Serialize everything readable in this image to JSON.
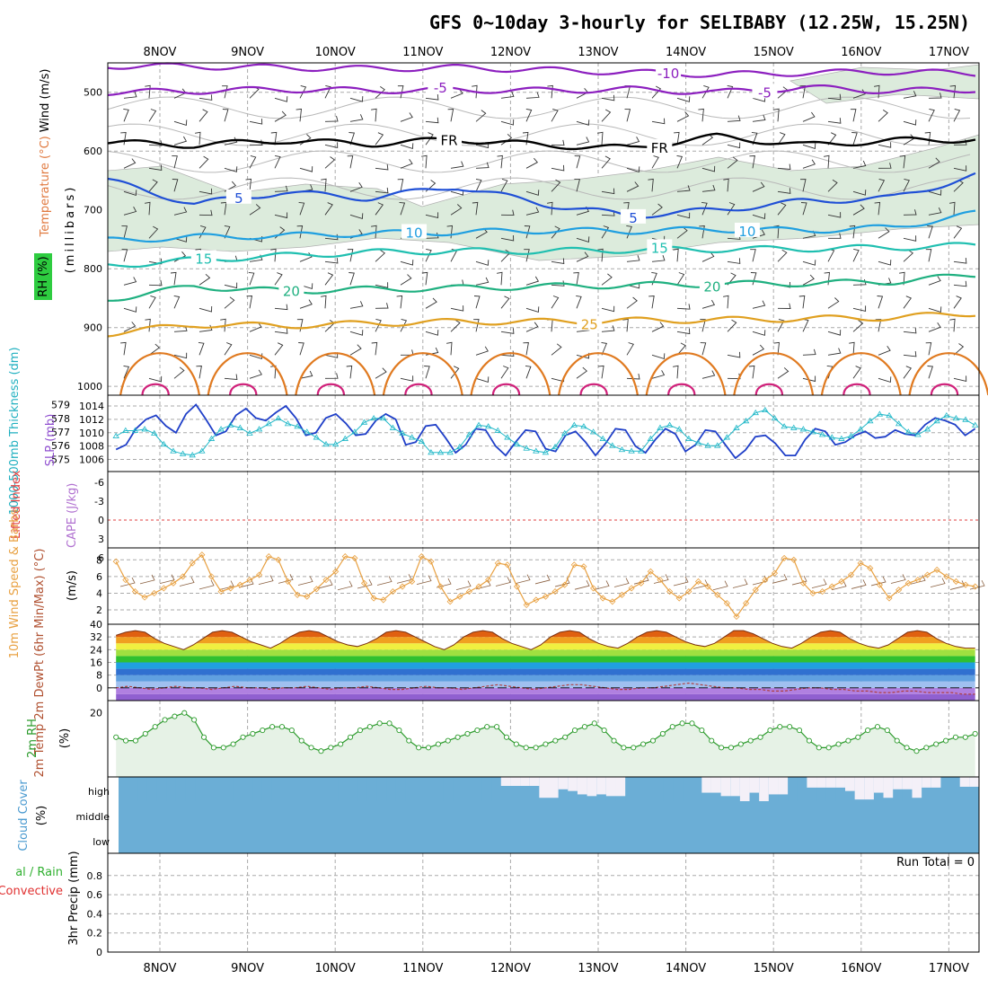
{
  "title": "GFS 0~10day 3-hourly for SELIBABY (12.25W, 15.25N)",
  "dates": [
    "8NOV",
    "9NOV",
    "10NOV",
    "11NOV",
    "12NOV",
    "13NOV",
    "14NOV",
    "15NOV",
    "16NOV",
    "17NOV"
  ],
  "run_total_text": "Run Total = 0",
  "colors": {
    "purple": "#8c1fbf",
    "black": "#000000",
    "blue": "#1f4fd6",
    "lightblue": "#1f9fe0",
    "teal": "#1fbfb0",
    "green": "#1fb080",
    "gold": "#e0a020",
    "orange": "#e07a20",
    "magenta": "#d0207a",
    "rhfill": "#dcebdc",
    "cloud": "#6baed6",
    "cloudhigh": "#f4f0f8",
    "slp": "#1f3fc8",
    "thick": "#20b8c8",
    "wind": "#e8a040",
    "rh2m": "#2a9a2a",
    "dew": "#b04040"
  },
  "chart_data": [
    {
      "panel": "upper-air",
      "type": "contour",
      "ylabel_parts": [
        {
          "text": "Wind (m/s)",
          "color": "#000000"
        },
        {
          "text": "Temperature (°C)",
          "color": "#e04040"
        },
        {
          "text": "RH (%)",
          "color": "#000000"
        }
      ],
      "y_unit": "(millibars)",
      "yticks": [
        500,
        600,
        700,
        800,
        900,
        1000
      ],
      "ylim": [
        450,
        1015
      ],
      "contours": [
        {
          "label": "-10",
          "color": "#8c1fbf",
          "labels_at": [
            13.8
          ],
          "p": [
            455,
            456,
            458,
            460,
            458,
            462,
            466,
            470,
            467,
            465,
            468
          ]
        },
        {
          "label": "-5",
          "color": "#8c1fbf",
          "labels_at": [
            11.2,
            14.9
          ],
          "p": [
            500,
            498,
            495,
            497,
            496,
            497,
            495,
            500,
            492,
            498,
            495
          ]
        },
        {
          "label": "FR",
          "color": "#000000",
          "labels_at": [
            11.3,
            13.7
          ],
          "p": [
            585,
            590,
            582,
            588,
            580,
            590,
            595,
            575,
            590,
            582,
            580
          ]
        },
        {
          "label": "5",
          "color": "#1f4fd6",
          "labels_at": [
            8.9,
            13.4
          ],
          "p": [
            650,
            690,
            670,
            680,
            660,
            690,
            710,
            700,
            685,
            680,
            640
          ]
        },
        {
          "label": "10",
          "color": "#1f9fe0",
          "labels_at": [
            10.9,
            14.7
          ],
          "p": [
            752,
            746,
            744,
            740,
            738,
            735,
            736,
            733,
            735,
            730,
            705
          ]
        },
        {
          "label": "15",
          "color": "#1fbfb0",
          "labels_at": [
            8.5,
            13.7
          ],
          "p": [
            795,
            785,
            778,
            772,
            770,
            770,
            768,
            767,
            766,
            764,
            760
          ]
        },
        {
          "label": "20",
          "color": "#1fb080",
          "labels_at": [
            9.5,
            14.3
          ],
          "p": [
            852,
            830,
            838,
            835,
            833,
            830,
            828,
            826,
            825,
            822,
            810
          ]
        },
        {
          "label": "25",
          "color": "#e0a020",
          "labels_at": [
            12.9
          ],
          "p": [
            910,
            895,
            897,
            893,
            890,
            890,
            888,
            887,
            885,
            883,
            875
          ]
        }
      ],
      "daily_loops": {
        "color": "#e07a20",
        "top": 935,
        "note": "diurnal 30°C near-surface contours"
      },
      "daily_hot": {
        "color": "#d0207a",
        "top": 990,
        "note": "diurnal 35°C near-surface contours"
      }
    },
    {
      "panel": "slp-thickness",
      "type": "line",
      "ylabel_left": "1000-500mb Thickness (dm)",
      "ylabel_right": "SLP (mb)",
      "yticks_left": [
        575,
        576,
        577,
        578,
        579
      ],
      "yticks_right": [
        1006,
        1008,
        1010,
        1012,
        1014
      ],
      "series": [
        {
          "name": "SLP",
          "axis": "right",
          "color": "#1f3fc8",
          "marker": "none",
          "values": [
            1007.5,
            1008.2,
            1010.6,
            1012.0,
            1012.6,
            1011.0,
            1010.0,
            1012.8,
            1014.2,
            1012.0,
            1009.6,
            1010.2,
            1012.6,
            1013.6,
            1012.2,
            1011.8,
            1013.0,
            1014.0,
            1012.2,
            1009.6,
            1010.0,
            1012.2,
            1012.8,
            1011.4,
            1009.6,
            1009.8,
            1011.8,
            1012.8,
            1012.0,
            1008.2,
            1008.6,
            1011.0,
            1011.2,
            1009.2,
            1007.0,
            1008.2,
            1010.6,
            1010.4,
            1008.0,
            1006.6,
            1008.6,
            1010.4,
            1010.2,
            1007.6,
            1007.2,
            1009.6,
            1010.2,
            1008.6,
            1006.6,
            1008.4,
            1010.6,
            1010.4,
            1008.0,
            1007.0,
            1009.0,
            1010.6,
            1009.8,
            1007.2,
            1008.2,
            1010.4,
            1010.2,
            1008.2,
            1006.2,
            1007.4,
            1009.4,
            1009.6,
            1008.4,
            1006.6,
            1006.6,
            1009.0,
            1010.6,
            1010.2,
            1008.2,
            1008.6,
            1009.6,
            1010.2,
            1009.2,
            1009.4,
            1010.4,
            1009.8,
            1009.6,
            1011.2,
            1012.2,
            1011.8,
            1011.2,
            1009.6,
            1010.6
          ]
        },
        {
          "name": "Thickness",
          "axis": "left",
          "color": "#20b8c8",
          "marker": "triangle",
          "values": [
            576.7,
            577.1,
            577.1,
            577.2,
            576.9,
            576.1,
            575.6,
            575.4,
            575.3,
            575.6,
            576.5,
            577.2,
            577.5,
            577.3,
            576.9,
            577.2,
            577.6,
            578.0,
            577.6,
            577.4,
            577.0,
            576.6,
            576.1,
            576.1,
            576.5,
            577.0,
            577.7,
            578.0,
            578.0,
            577.3,
            576.9,
            576.6,
            576.3,
            575.5,
            575.5,
            575.5,
            575.9,
            576.8,
            577.5,
            577.4,
            577.1,
            576.6,
            576.1,
            575.8,
            575.6,
            575.5,
            575.9,
            576.9,
            577.5,
            577.4,
            577.0,
            576.5,
            576.0,
            575.7,
            575.6,
            575.6,
            576.5,
            577.3,
            577.5,
            577.2,
            576.5,
            576.2,
            576.0,
            576.0,
            576.6,
            577.3,
            577.8,
            578.4,
            578.6,
            578.0,
            577.4,
            577.3,
            577.2,
            577.0,
            576.8,
            576.6,
            576.5,
            576.7,
            577.2,
            577.8,
            578.3,
            578.2,
            577.6,
            577.0,
            576.8,
            577.2,
            577.8,
            578.2,
            578.0,
            577.9,
            577.5
          ]
        }
      ]
    },
    {
      "panel": "cape-lifted-index",
      "type": "line",
      "ylabel_left": "Lifted Index",
      "ylabel_right": "CAPE (J/kg)",
      "yticks": [
        "-6",
        "-3",
        "0",
        "3",
        "6"
      ],
      "series": [
        {
          "name": "Lifted Index",
          "color": "#e04040",
          "values": [
            0
          ]
        }
      ]
    },
    {
      "panel": "10m-wind",
      "type": "line",
      "ylabel": "10m Wind Speed & Barbs",
      "yunit": "(m/s)",
      "yticks": [
        2,
        4,
        6,
        8
      ],
      "series": [
        {
          "name": "Speed",
          "color": "#e8a040",
          "marker": "diamond",
          "values": [
            7.8,
            5.6,
            4.2,
            3.5,
            4.0,
            4.6,
            5.2,
            6.0,
            7.6,
            8.6,
            6.0,
            4.2,
            4.6,
            5.0,
            5.6,
            6.2,
            8.4,
            8.0,
            5.4,
            3.8,
            3.6,
            4.5,
            5.6,
            6.6,
            8.4,
            8.2,
            5.2,
            3.4,
            3.2,
            4.2,
            4.8,
            5.4,
            8.4,
            7.8,
            4.8,
            3.0,
            3.6,
            4.2,
            4.8,
            5.6,
            7.6,
            7.4,
            4.8,
            2.6,
            3.2,
            3.6,
            4.2,
            5.0,
            7.4,
            7.2,
            4.6,
            3.4,
            3.0,
            3.8,
            4.6,
            5.2,
            6.6,
            5.6,
            4.2,
            3.4,
            4.2,
            5.4,
            4.8,
            3.8,
            2.8,
            1.2,
            2.8,
            4.4,
            5.6,
            6.4,
            8.2,
            8.0,
            5.2,
            4.0,
            4.2,
            4.8,
            5.4,
            6.2,
            7.6,
            7.0,
            5.0,
            3.4,
            4.4,
            5.2,
            5.6,
            6.2,
            6.8,
            6.0,
            5.4,
            5.0,
            4.8
          ]
        }
      ]
    },
    {
      "panel": "2m-temp",
      "type": "area",
      "ylabel": "2m Temp 2m DewPt (6hr Min/Max) (°C)",
      "yticks": [
        0,
        8,
        16,
        24,
        32,
        40
      ],
      "ylim": [
        -8,
        40
      ],
      "series": [
        {
          "name": "Temp",
          "values": [
            33,
            35,
            36,
            35,
            31,
            28,
            26,
            24,
            27,
            31,
            35,
            36,
            35,
            32,
            29,
            27,
            25,
            28,
            32,
            35,
            36,
            35,
            32,
            29,
            27,
            26,
            28,
            31,
            35,
            36,
            35,
            32,
            29,
            26,
            24,
            27,
            32,
            35,
            36,
            35,
            31,
            28,
            26,
            24,
            27,
            32,
            35,
            36,
            35,
            31,
            28,
            26,
            25,
            28,
            32,
            35,
            36,
            35,
            32,
            29,
            27,
            26,
            28,
            32,
            36,
            36,
            34,
            31,
            28,
            26,
            25,
            28,
            32,
            35,
            36,
            35,
            31,
            28,
            26,
            25,
            27,
            31,
            35,
            36,
            35,
            31,
            28,
            26,
            25,
            25
          ]
        },
        {
          "name": "DewPt",
          "values": [
            0,
            1,
            0,
            -1,
            0,
            1,
            0,
            0,
            -1,
            0,
            1,
            0,
            0,
            -1,
            0,
            0,
            1,
            0,
            -1,
            0,
            0,
            1,
            0,
            -1,
            -1,
            0,
            1,
            0,
            0,
            -1,
            0,
            1,
            2,
            1,
            0,
            -1,
            0,
            1,
            2,
            2,
            1,
            0,
            -1,
            -1,
            0,
            0,
            1,
            2,
            3,
            2,
            1,
            0,
            0,
            -1,
            -1,
            -2,
            -2,
            -1,
            0,
            0,
            -1,
            -1,
            -2,
            -2,
            -3,
            -3,
            -2,
            -2,
            -3,
            -3,
            -3,
            -4,
            -4
          ]
        }
      ]
    },
    {
      "panel": "2m-rh",
      "type": "area",
      "ylabel": "2m RH",
      "yunit": "(%)",
      "yticks": [
        20
      ],
      "series": [
        {
          "name": "RH",
          "color": "#2a9a2a",
          "marker": "circle",
          "values": [
            13,
            12,
            12,
            14,
            16,
            18,
            19,
            20,
            18,
            13,
            10,
            10,
            11,
            13,
            14,
            15,
            16,
            16,
            15,
            12,
            10,
            9,
            10,
            11,
            13,
            15,
            16,
            17,
            17,
            15,
            12,
            10,
            10,
            11,
            12,
            13,
            14,
            15,
            16,
            16,
            13,
            11,
            10,
            10,
            11,
            12,
            13,
            15,
            16,
            17,
            15,
            12,
            10,
            10,
            11,
            12,
            14,
            16,
            17,
            17,
            15,
            12,
            10,
            10,
            11,
            12,
            13,
            15,
            16,
            16,
            15,
            12,
            10,
            10,
            11,
            12,
            13,
            15,
            16,
            15,
            12,
            10,
            9,
            10,
            11,
            12,
            13,
            13,
            14
          ]
        }
      ]
    },
    {
      "panel": "cloud-cover",
      "type": "area",
      "ylabel": "Cloud Cover",
      "yunit": "(%)",
      "ytick_labels": [
        "high",
        "middle",
        "low"
      ],
      "high_cloud": [
        0,
        0,
        0,
        0,
        0,
        0,
        0,
        0,
        0,
        0,
        0,
        0,
        0,
        0,
        0,
        0,
        0,
        0,
        0,
        0,
        0,
        0,
        0,
        0,
        0,
        0,
        0,
        0,
        0,
        0,
        0,
        0,
        0,
        0,
        0,
        0,
        0,
        0,
        0,
        0,
        0.1,
        0.1,
        0.1,
        0.1,
        0.8,
        0.8,
        0.3,
        0.4,
        0.6,
        0.7,
        0.6,
        0.7,
        0.7,
        0,
        0,
        0,
        0,
        0,
        0,
        0,
        0,
        0.5,
        0.5,
        0.7,
        0.7,
        1.0,
        0.5,
        1.0,
        0.6,
        0.6,
        0,
        0,
        0.2,
        0.2,
        0.2,
        0.2,
        0.4,
        0.9,
        0.9,
        0.5,
        0.8,
        0.3,
        0.3,
        0.8,
        0.2,
        0.2,
        0,
        0,
        0.15,
        0.15
      ]
    },
    {
      "panel": "precip",
      "type": "bar",
      "ylabel_left": "Total / Rain Convective",
      "ylabel": "3hr Precip (mm)",
      "yticks": [
        0,
        0.2,
        0.4,
        0.6,
        0.8
      ],
      "values": [
        0
      ]
    }
  ]
}
